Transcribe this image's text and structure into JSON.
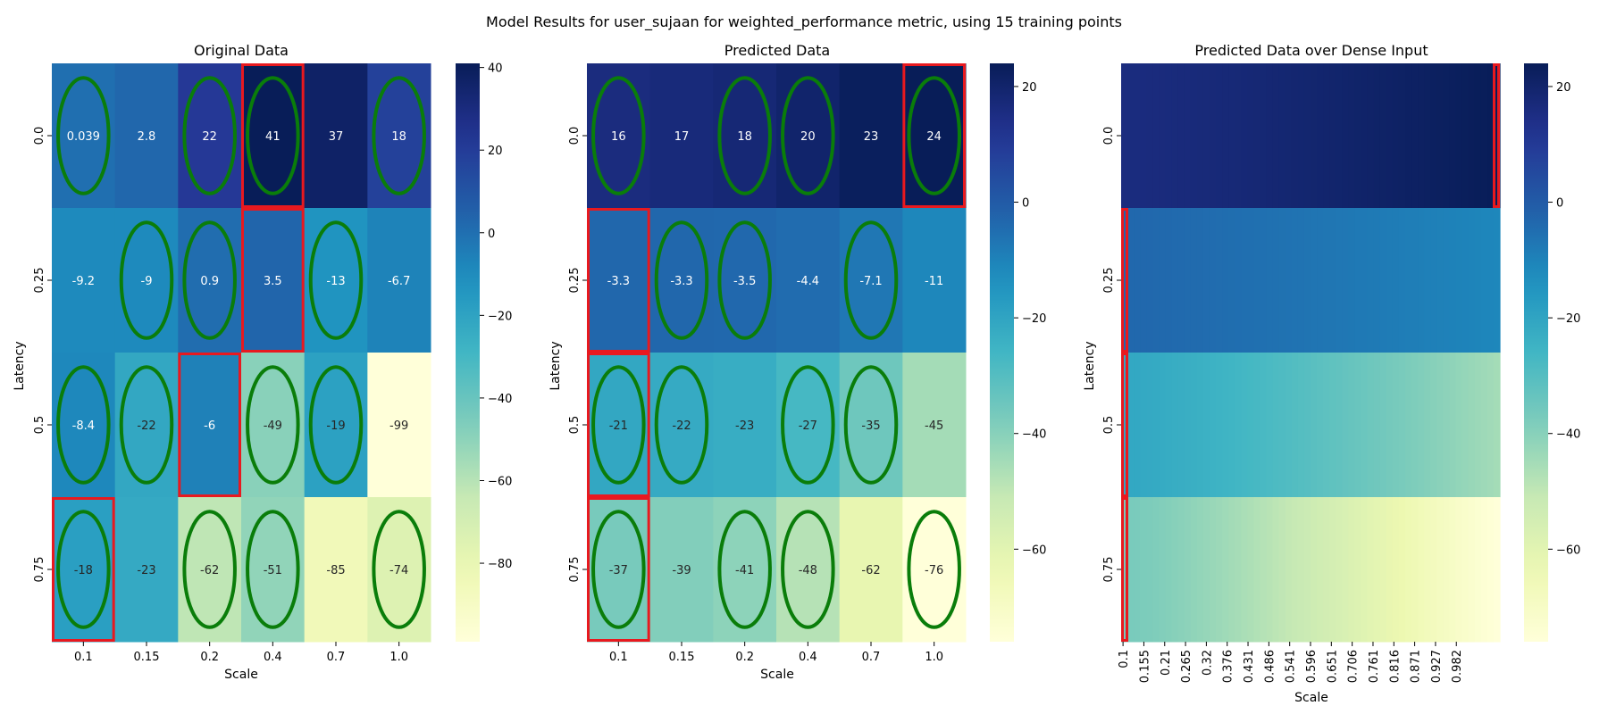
{
  "figure": {
    "title": "Model Results for user_sujaan for weighted_performance metric, using 15 training points"
  },
  "chart_data": [
    {
      "type": "heatmap",
      "title": "Original Data",
      "xlabel": "Scale",
      "ylabel": "Latency",
      "x_ticks": [
        "0.1",
        "0.15",
        "0.2",
        "0.4",
        "0.7",
        "1.0"
      ],
      "y_ticks": [
        "0.0",
        "0.25",
        "0.5",
        "0.75"
      ],
      "values": [
        [
          0.039,
          2.8,
          22,
          41,
          37,
          18
        ],
        [
          -9.2,
          -9,
          0.9,
          3.5,
          -13,
          -6.7
        ],
        [
          -8.4,
          -22,
          -6,
          -49,
          -19,
          -99
        ],
        [
          -18,
          -23,
          -62,
          -51,
          -85,
          -74
        ]
      ],
      "labels": [
        [
          "0.039",
          "2.8",
          "22",
          "41",
          "37",
          "18"
        ],
        [
          "-9.2",
          "-9",
          "0.9",
          "3.5",
          "-13",
          "-6.7"
        ],
        [
          "-8.4",
          "-22",
          "-6",
          "-49",
          "-19",
          "-99"
        ],
        [
          "-18",
          "-23",
          "-62",
          "-51",
          "-85",
          "-74"
        ]
      ],
      "colorscale": "YlGnBu",
      "vmin": -99,
      "vmax": 41,
      "colorbar_ticks": [
        "40",
        "20",
        "0",
        "−20",
        "−40",
        "−60",
        "−80"
      ],
      "colorbar_tick_values": [
        40,
        20,
        0,
        -20,
        -40,
        -60,
        -80
      ],
      "training_points": [
        [
          0,
          0
        ],
        [
          0,
          2
        ],
        [
          0,
          3
        ],
        [
          0,
          5
        ],
        [
          1,
          1
        ],
        [
          1,
          2
        ],
        [
          1,
          4
        ],
        [
          2,
          0
        ],
        [
          2,
          1
        ],
        [
          2,
          3
        ],
        [
          2,
          4
        ],
        [
          3,
          0
        ],
        [
          3,
          2
        ],
        [
          3,
          3
        ],
        [
          3,
          5
        ]
      ],
      "highlighted_cells": [
        [
          0,
          3
        ],
        [
          1,
          3
        ],
        [
          2,
          2
        ],
        [
          3,
          0
        ]
      ]
    },
    {
      "type": "heatmap",
      "title": "Predicted Data",
      "xlabel": "Scale",
      "ylabel": "Latency",
      "x_ticks": [
        "0.1",
        "0.15",
        "0.2",
        "0.4",
        "0.7",
        "1.0"
      ],
      "y_ticks": [
        "0.0",
        "0.25",
        "0.5",
        "0.75"
      ],
      "values": [
        [
          16,
          17,
          18,
          20,
          23,
          24
        ],
        [
          -3.3,
          -3.3,
          -3.5,
          -4.4,
          -7.1,
          -11
        ],
        [
          -21,
          -22,
          -23,
          -27,
          -35,
          -45
        ],
        [
          -37,
          -39,
          -41,
          -48,
          -62,
          -76
        ]
      ],
      "labels": [
        [
          "16",
          "17",
          "18",
          "20",
          "23",
          "24"
        ],
        [
          "-3.3",
          "-3.3",
          "-3.5",
          "-4.4",
          "-7.1",
          "-11"
        ],
        [
          "-21",
          "-22",
          "-23",
          "-27",
          "-35",
          "-45"
        ],
        [
          "-37",
          "-39",
          "-41",
          "-48",
          "-62",
          "-76"
        ]
      ],
      "colorscale": "YlGnBu",
      "vmin": -76,
      "vmax": 24,
      "colorbar_ticks": [
        "20",
        "0",
        "−20",
        "−40",
        "−60"
      ],
      "colorbar_tick_values": [
        20,
        0,
        -20,
        -40,
        -60
      ],
      "training_points": [
        [
          0,
          0
        ],
        [
          0,
          2
        ],
        [
          0,
          3
        ],
        [
          0,
          5
        ],
        [
          1,
          1
        ],
        [
          1,
          2
        ],
        [
          1,
          4
        ],
        [
          2,
          0
        ],
        [
          2,
          1
        ],
        [
          2,
          3
        ],
        [
          2,
          4
        ],
        [
          3,
          0
        ],
        [
          3,
          2
        ],
        [
          3,
          3
        ],
        [
          3,
          5
        ]
      ],
      "highlighted_cells": [
        [
          0,
          5
        ],
        [
          1,
          0
        ],
        [
          2,
          0
        ],
        [
          3,
          0
        ]
      ]
    },
    {
      "type": "heatmap",
      "title": "Predicted Data over Dense Input",
      "xlabel": "Scale",
      "ylabel": "Latency",
      "x_ticks": [
        "0.1",
        "0.155",
        "0.21",
        "0.265",
        "0.32",
        "0.376",
        "0.431",
        "0.486",
        "0.541",
        "0.596",
        "0.651",
        "0.706",
        "0.761",
        "0.816",
        "0.871",
        "0.927",
        "0.982"
      ],
      "y_ticks": [
        "0.0",
        "0.25",
        "0.5",
        "0.75"
      ],
      "row_start": [
        16,
        -3.3,
        -21,
        -37
      ],
      "row_end": [
        24,
        -11,
        -45,
        -76
      ],
      "colorscale": "YlGnBu",
      "vmin": -76,
      "vmax": 24,
      "colorbar_ticks": [
        "20",
        "0",
        "−20",
        "−40",
        "−60"
      ],
      "colorbar_tick_values": [
        20,
        0,
        -20,
        -40,
        -60
      ],
      "highlighted_cells": [
        [
          0,
          "right"
        ],
        [
          1,
          "left"
        ],
        [
          2,
          "left"
        ],
        [
          3,
          "left"
        ]
      ]
    }
  ]
}
